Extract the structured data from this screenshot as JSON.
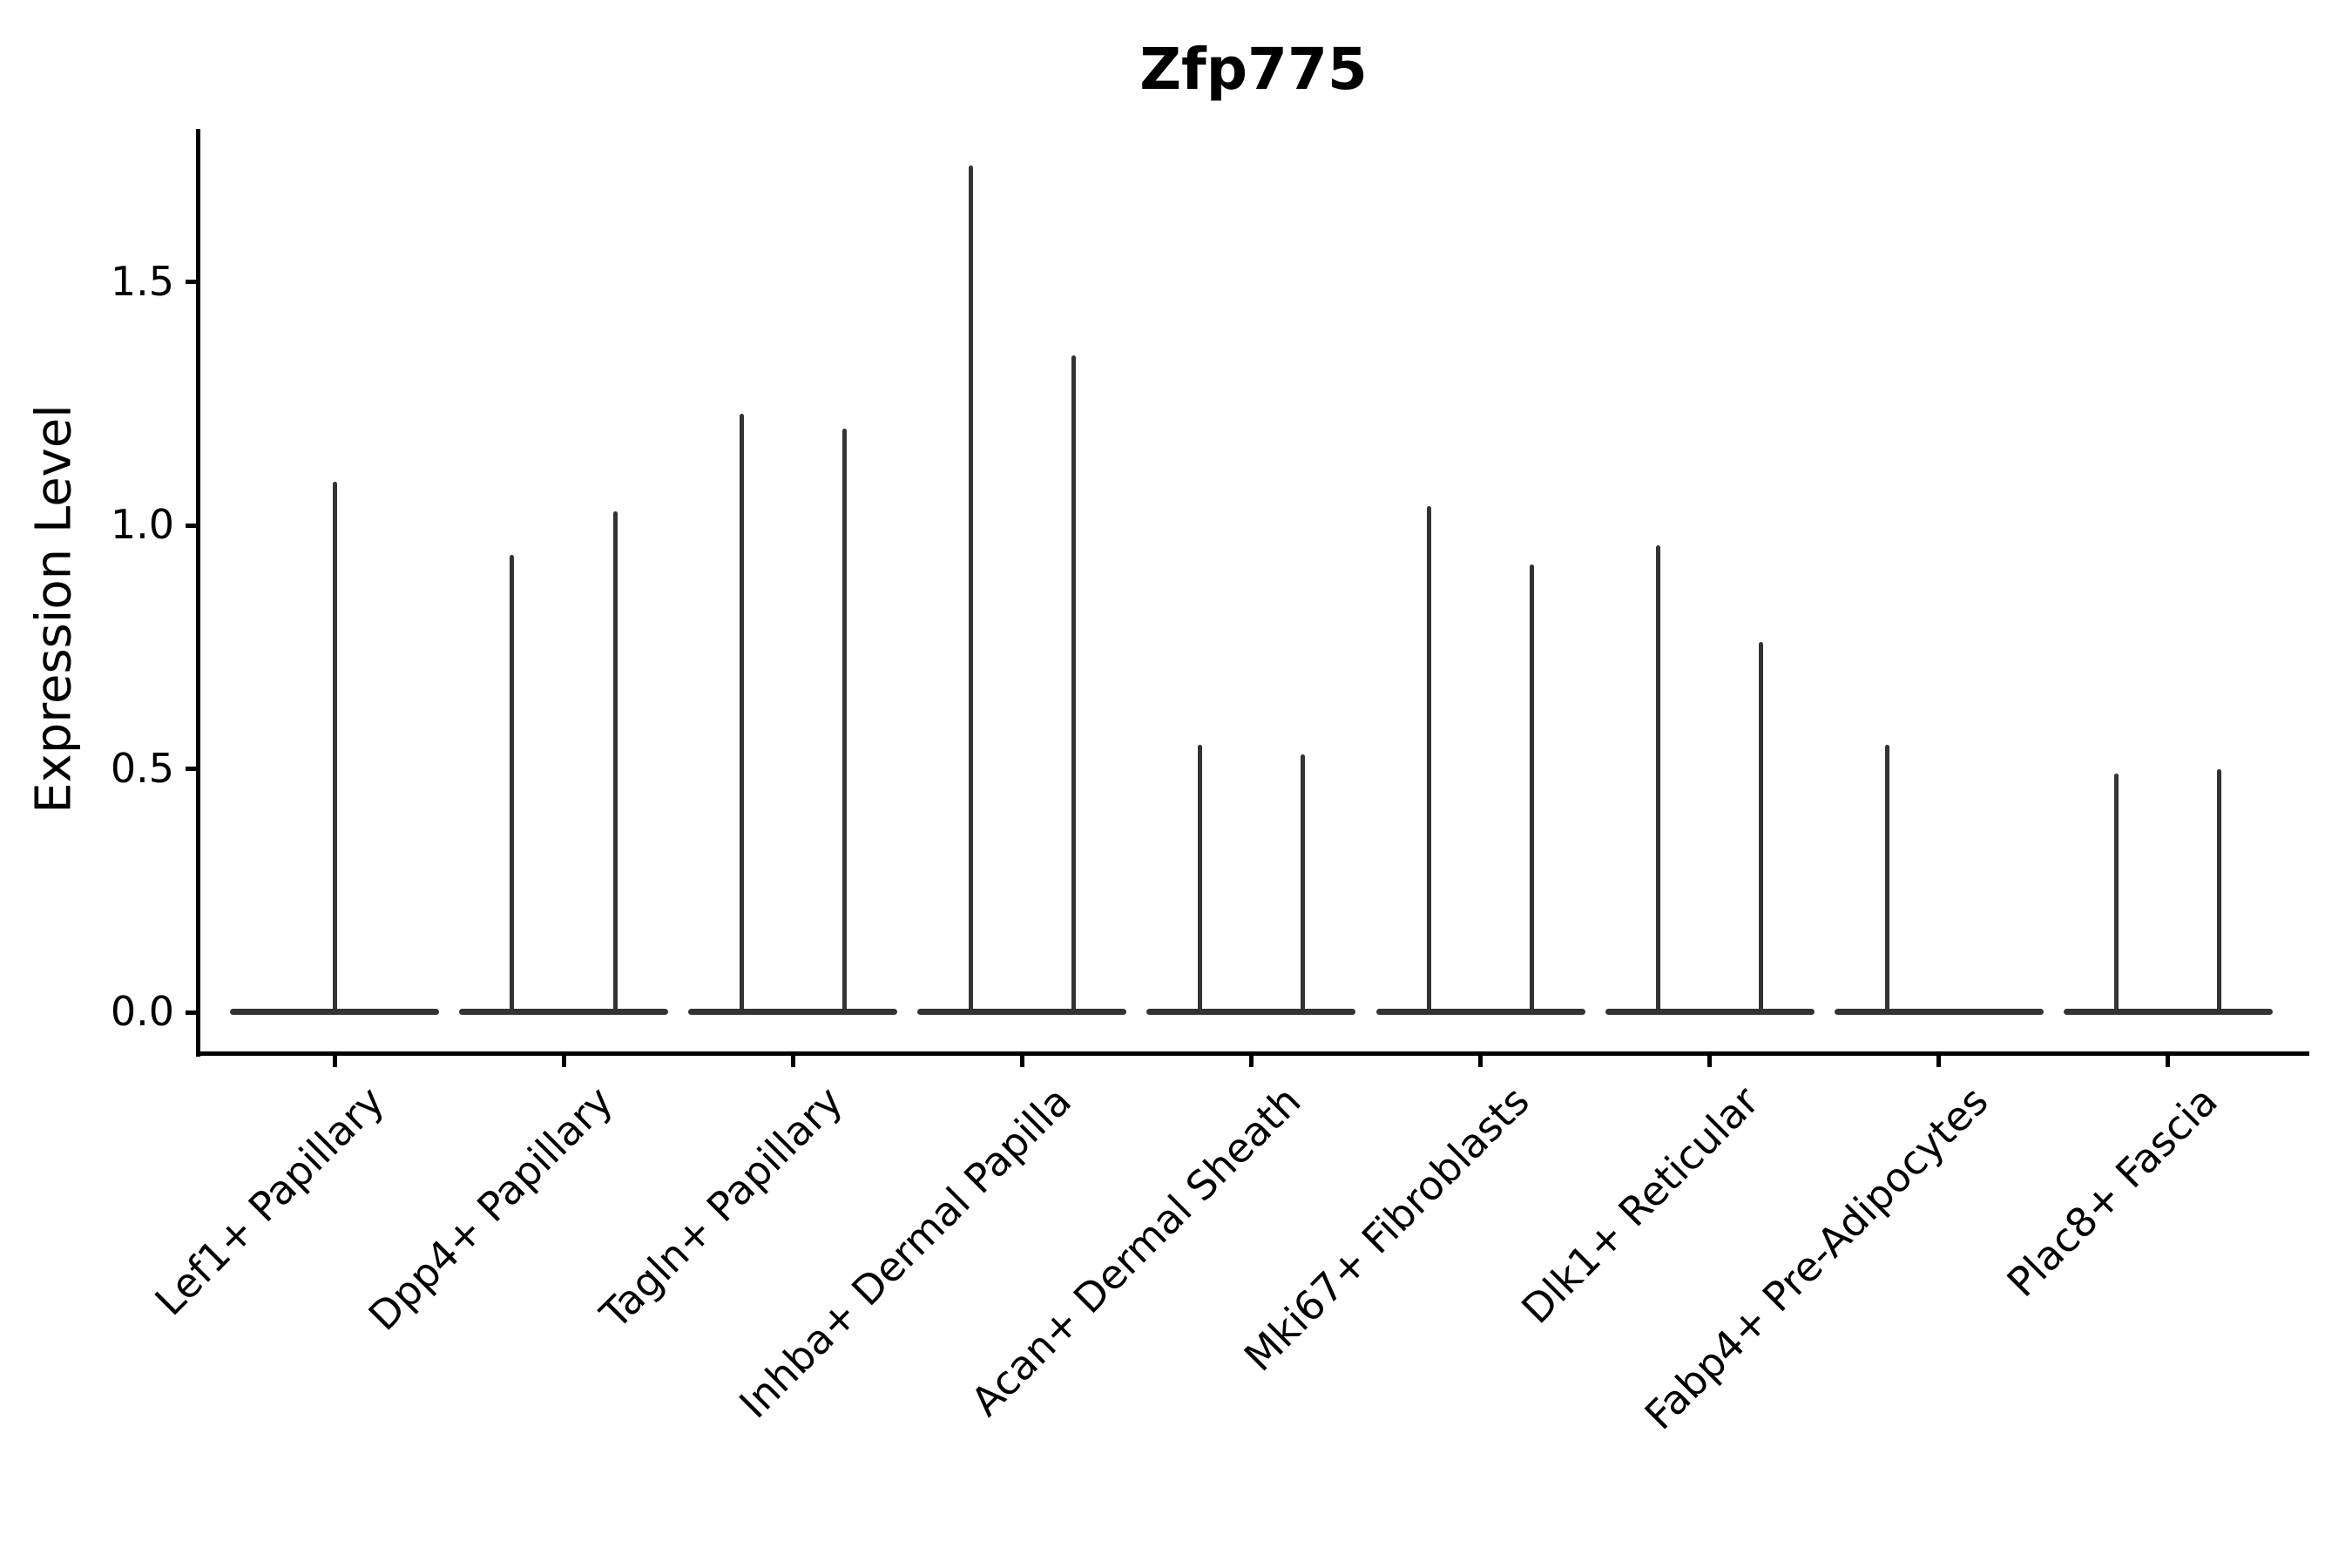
{
  "title": "Zfp775",
  "axes": {
    "ylabel": "Expression Level",
    "ytick_labels": [
      "0.0",
      "0.5",
      "1.0",
      "1.5"
    ],
    "categories": [
      "Lef1+ Papillary",
      "Dpp4+ Papillary",
      "Tagln+ Papillary",
      "Inhba+ Dermal Papilla",
      "Acan+ Dermal Sheath",
      "Mki67+ Fibroblasts",
      "Dlk1+ Reticular",
      "Fabp4+ Pre-Adipocytes",
      "Plac8+ Fascia"
    ]
  },
  "colors": {
    "violin_line": "#333333",
    "axis": "#000000",
    "background": "#ffffff"
  },
  "chart_data": {
    "type": "violin",
    "title": "Zfp775",
    "xlabel": "",
    "ylabel": "Expression Level",
    "categories": [
      "Lef1+ Papillary",
      "Dpp4+ Papillary",
      "Tagln+ Papillary",
      "Inhba+ Dermal Papilla",
      "Acan+ Dermal Sheath",
      "Mki67+ Fibroblasts",
      "Dlk1+ Reticular",
      "Fabp4+ Pre-Adipocytes",
      "Plac8+ Fascia"
    ],
    "yticks": [
      0.0,
      0.5,
      1.0,
      1.5
    ],
    "ylim": [
      -0.09,
      1.82
    ],
    "grid": false,
    "legend": null,
    "description": "Violin plot; each category shows a wide flat violin base at expression 0 with thin spike(s) rising to the maximum expression. Most categories contain two violins (spikes at offset ±0.225 of the category slot); Lef1+ Papillary has a single centered spike and Fabp4+ Pre-Adipocytes has only the left spike.",
    "violins": [
      {
        "category": "Lef1+ Papillary",
        "spikes": [
          {
            "offset": 0.0,
            "max": 1.09
          }
        ]
      },
      {
        "category": "Dpp4+ Papillary",
        "spikes": [
          {
            "offset": -0.225,
            "max": 0.94
          },
          {
            "offset": 0.225,
            "max": 1.03
          }
        ]
      },
      {
        "category": "Tagln+ Papillary",
        "spikes": [
          {
            "offset": -0.225,
            "max": 1.23
          },
          {
            "offset": 0.225,
            "max": 1.2
          }
        ]
      },
      {
        "category": "Inhba+ Dermal Papilla",
        "spikes": [
          {
            "offset": -0.225,
            "max": 1.74
          },
          {
            "offset": 0.225,
            "max": 1.35
          }
        ]
      },
      {
        "category": "Acan+ Dermal Sheath",
        "spikes": [
          {
            "offset": -0.225,
            "max": 0.55
          },
          {
            "offset": 0.225,
            "max": 0.53
          }
        ]
      },
      {
        "category": "Mki67+ Fibroblasts",
        "spikes": [
          {
            "offset": -0.225,
            "max": 1.04
          },
          {
            "offset": 0.225,
            "max": 0.92
          }
        ]
      },
      {
        "category": "Dlk1+ Reticular",
        "spikes": [
          {
            "offset": -0.225,
            "max": 0.96
          },
          {
            "offset": 0.225,
            "max": 0.76
          }
        ]
      },
      {
        "category": "Fabp4+ Pre-Adipocytes",
        "spikes": [
          {
            "offset": -0.225,
            "max": 0.55
          }
        ]
      },
      {
        "category": "Plac8+ Fascia",
        "spikes": [
          {
            "offset": -0.225,
            "max": 0.49
          },
          {
            "offset": 0.225,
            "max": 0.5
          }
        ]
      }
    ],
    "base_width_fraction": 0.91
  }
}
